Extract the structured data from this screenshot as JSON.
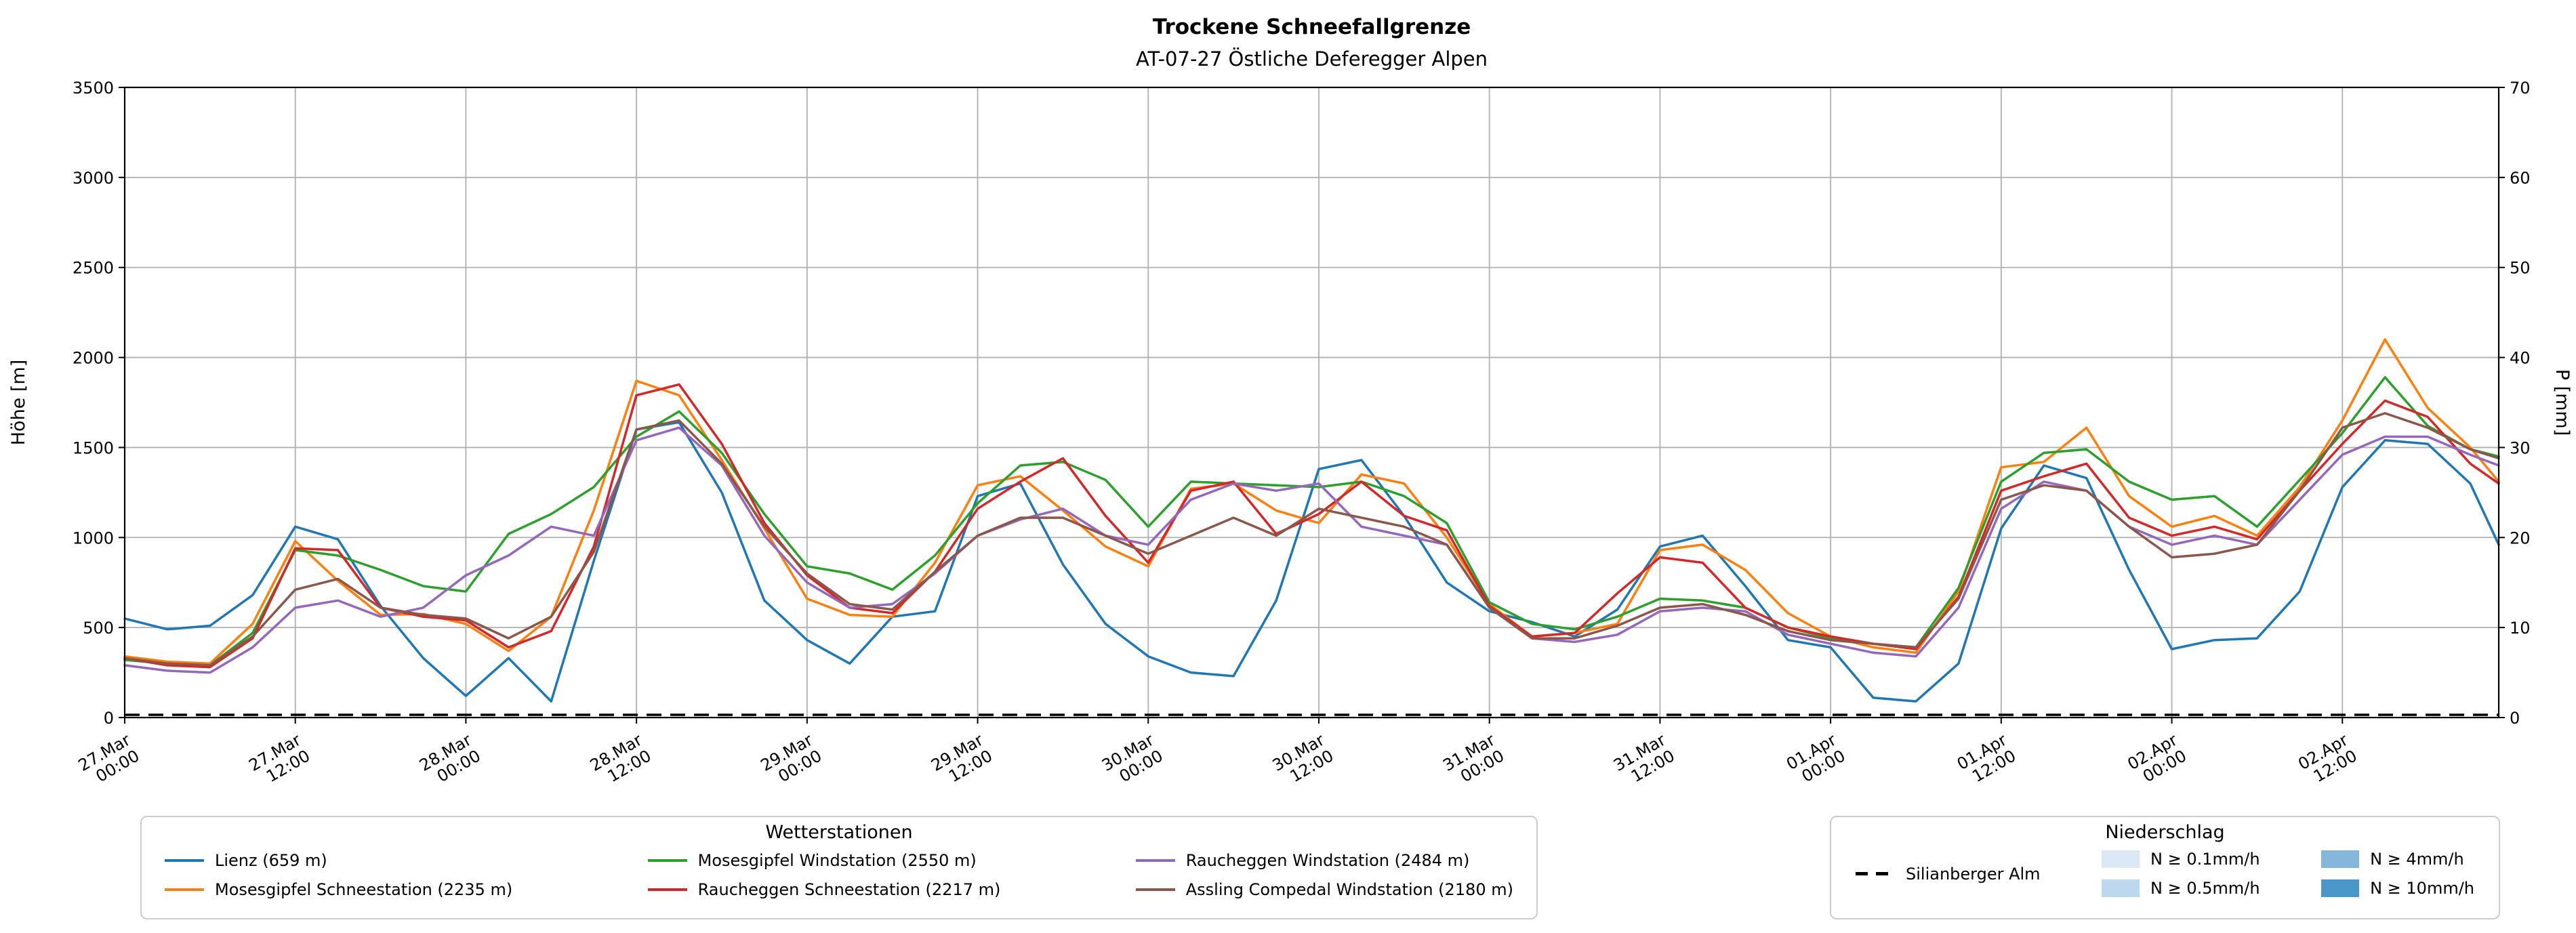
{
  "chart_data": {
    "type": "line",
    "title": "Trockene Schneefallgrenze",
    "subtitle": "AT-07-27 Östliche Deferegger Alpen",
    "grid": true,
    "legend_position": "below",
    "x_axis": {
      "unit": "hours since 27.Mar 00:00",
      "range": [
        0,
        167
      ],
      "tick_hours": [
        0,
        12,
        24,
        36,
        48,
        60,
        72,
        84,
        96,
        108,
        120,
        132,
        144,
        156
      ],
      "tick_labels": [
        [
          "27.Mar",
          "00:00"
        ],
        [
          "27.Mar",
          "12:00"
        ],
        [
          "28.Mar",
          "00:00"
        ],
        [
          "28.Mar",
          "12:00"
        ],
        [
          "29.Mar",
          "00:00"
        ],
        [
          "29.Mar",
          "12:00"
        ],
        [
          "30.Mar",
          "00:00"
        ],
        [
          "30.Mar",
          "12:00"
        ],
        [
          "31.Mar",
          "00:00"
        ],
        [
          "31.Mar",
          "12:00"
        ],
        [
          "01.Apr",
          "00:00"
        ],
        [
          "01.Apr",
          "12:00"
        ],
        [
          "02.Apr",
          "00:00"
        ],
        [
          "02.Apr",
          "12:00"
        ]
      ]
    },
    "y_left": {
      "label": "Höhe [m]",
      "range": [
        0,
        3500
      ],
      "ticks": [
        0,
        500,
        1000,
        1500,
        2000,
        2500,
        3000,
        3500
      ]
    },
    "y_right": {
      "label": "P [mm]",
      "range": [
        0,
        70
      ],
      "ticks": [
        0,
        10,
        20,
        30,
        40,
        50,
        60,
        70
      ]
    },
    "sample_hours": [
      0,
      3,
      6,
      9,
      12,
      15,
      18,
      21,
      24,
      27,
      30,
      33,
      36,
      39,
      42,
      45,
      48,
      51,
      54,
      57,
      60,
      63,
      66,
      69,
      72,
      75,
      78,
      81,
      84,
      87,
      90,
      93,
      96,
      99,
      102,
      105,
      108,
      111,
      114,
      117,
      120,
      123,
      126,
      129,
      132,
      135,
      138,
      141,
      144,
      147,
      150,
      153,
      156,
      159,
      162,
      165,
      167
    ],
    "series": [
      {
        "name": "Lienz (659 m)",
        "color": "#1f77b4",
        "axis": "left",
        "values": [
          550,
          490,
          510,
          680,
          1060,
          990,
          620,
          330,
          120,
          330,
          90,
          870,
          1600,
          1640,
          1250,
          650,
          430,
          300,
          560,
          590,
          1230,
          1300,
          850,
          520,
          340,
          250,
          230,
          650,
          1380,
          1430,
          1120,
          750,
          590,
          530,
          450,
          600,
          950,
          1010,
          730,
          430,
          390,
          110,
          90,
          300,
          1050,
          1400,
          1330,
          820,
          380,
          430,
          440,
          700,
          1280,
          1540,
          1520,
          1300,
          960
        ]
      },
      {
        "name": "Mosesgipfel Schneestation (2235 m)",
        "color": "#ff7f0e",
        "axis": "left",
        "values": [
          340,
          310,
          300,
          520,
          980,
          760,
          570,
          575,
          520,
          370,
          560,
          1150,
          1870,
          1790,
          1430,
          1050,
          660,
          570,
          560,
          860,
          1290,
          1340,
          1150,
          950,
          840,
          1270,
          1300,
          1150,
          1080,
          1350,
          1300,
          1000,
          630,
          450,
          470,
          520,
          930,
          960,
          820,
          580,
          450,
          390,
          360,
          700,
          1390,
          1420,
          1610,
          1230,
          1060,
          1120,
          1010,
          1280,
          1650,
          2100,
          1720,
          1500,
          1310
        ]
      },
      {
        "name": "Mosesgipfel Windstation (2550 m)",
        "color": "#2ca02c",
        "axis": "left",
        "values": [
          320,
          300,
          290,
          470,
          930,
          900,
          820,
          730,
          700,
          1020,
          1130,
          1280,
          1560,
          1700,
          1470,
          1130,
          840,
          800,
          710,
          900,
          1190,
          1400,
          1420,
          1320,
          1060,
          1310,
          1300,
          1290,
          1280,
          1310,
          1230,
          1080,
          640,
          520,
          490,
          560,
          660,
          650,
          610,
          500,
          440,
          410,
          390,
          720,
          1310,
          1470,
          1490,
          1310,
          1210,
          1230,
          1060,
          1320,
          1580,
          1890,
          1620,
          1490,
          1450
        ]
      },
      {
        "name": "Raucheggen Schneestation (2217 m)",
        "color": "#d62728",
        "axis": "left",
        "values": [
          330,
          290,
          280,
          440,
          940,
          930,
          610,
          560,
          540,
          390,
          480,
          950,
          1790,
          1850,
          1520,
          1080,
          790,
          610,
          580,
          810,
          1160,
          1310,
          1440,
          1120,
          860,
          1260,
          1310,
          1020,
          1130,
          1310,
          1120,
          1040,
          620,
          450,
          470,
          690,
          890,
          860,
          610,
          500,
          450,
          410,
          380,
          670,
          1260,
          1340,
          1410,
          1110,
          1010,
          1060,
          990,
          1260,
          1520,
          1760,
          1670,
          1410,
          1300
        ]
      },
      {
        "name": "Raucheggen Windstation (2484 m)",
        "color": "#9467bd",
        "axis": "left",
        "values": [
          290,
          260,
          250,
          390,
          610,
          650,
          560,
          610,
          790,
          900,
          1060,
          1010,
          1540,
          1610,
          1400,
          1010,
          750,
          610,
          630,
          800,
          1010,
          1100,
          1160,
          1010,
          960,
          1210,
          1300,
          1260,
          1300,
          1060,
          1010,
          960,
          610,
          440,
          420,
          460,
          590,
          610,
          590,
          460,
          410,
          360,
          340,
          610,
          1160,
          1310,
          1260,
          1060,
          960,
          1010,
          960,
          1210,
          1460,
          1560,
          1560,
          1460,
          1400
        ]
      },
      {
        "name": "Assling Compedal Windstation (2180 m)",
        "color": "#8c564b",
        "axis": "left",
        "values": [
          330,
          300,
          290,
          450,
          710,
          770,
          610,
          570,
          550,
          440,
          560,
          920,
          1600,
          1650,
          1410,
          1060,
          800,
          630,
          600,
          810,
          1010,
          1110,
          1110,
          1010,
          910,
          1010,
          1110,
          1010,
          1160,
          1110,
          1060,
          960,
          610,
          440,
          440,
          510,
          610,
          630,
          570,
          480,
          430,
          410,
          390,
          660,
          1210,
          1290,
          1260,
          1060,
          890,
          910,
          960,
          1260,
          1610,
          1690,
          1610,
          1490,
          1440
        ]
      }
    ],
    "precip_line": {
      "name": "Silianberger Alm",
      "color": "#000000",
      "style": "dashed",
      "axis": "right",
      "constant_value_mm": 0
    }
  },
  "legends": {
    "stations_title": "Wetterstationen",
    "precip_title": "Niederschlag",
    "precip_line_label": "Silianberger Alm",
    "precip_bands": [
      {
        "label": "N ≥ 0.1mm/h",
        "color": "#dbe9f6"
      },
      {
        "label": "N ≥ 0.5mm/h",
        "color": "#bdd7ec"
      },
      {
        "label": "N ≥ 4mm/h",
        "color": "#85b7dc"
      },
      {
        "label": "N ≥ 10mm/h",
        "color": "#4a98c9"
      }
    ]
  }
}
